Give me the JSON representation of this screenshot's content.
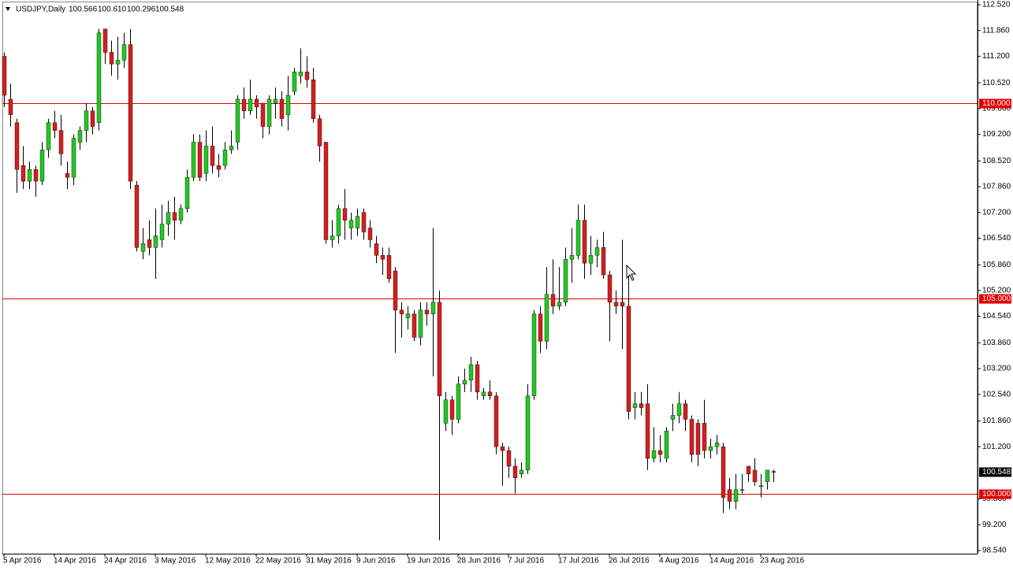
{
  "header": {
    "symbol": "USDJPY,Daily",
    "quote": [
      "100.566",
      "100.610",
      "100.296",
      "100.548"
    ]
  },
  "chart_data": {
    "type": "candlestick",
    "up_color": "#22c822",
    "down_color": "#d61e1e",
    "wick_color": "#000000",
    "categories": [
      "5 Apr 2016",
      null,
      null,
      null,
      null,
      null,
      null,
      null,
      "14 Apr 2016",
      null,
      null,
      null,
      null,
      null,
      null,
      null,
      "24 Apr 2016",
      null,
      null,
      null,
      null,
      null,
      null,
      null,
      "3 May 2016",
      null,
      null,
      null,
      null,
      null,
      null,
      null,
      "12 May 2016",
      null,
      null,
      null,
      null,
      null,
      null,
      null,
      "22 May 2016",
      null,
      null,
      null,
      null,
      null,
      null,
      null,
      "31 May 2016",
      null,
      null,
      null,
      null,
      null,
      null,
      null,
      "9 Jun 2016",
      null,
      null,
      null,
      null,
      null,
      null,
      null,
      "19 Jun 2016",
      null,
      null,
      null,
      null,
      null,
      null,
      null,
      "28 Jun 2016",
      null,
      null,
      null,
      null,
      null,
      null,
      null,
      "7 Jul 2016",
      null,
      null,
      null,
      null,
      null,
      null,
      null,
      "17 Jul 2016",
      null,
      null,
      null,
      null,
      null,
      null,
      null,
      "26 Jul 2016",
      null,
      null,
      null,
      null,
      null,
      null,
      null,
      "4 Aug 2016",
      null,
      null,
      null,
      null,
      null,
      null,
      null,
      "14 Aug 2016",
      null,
      null,
      null,
      null,
      null,
      null,
      null,
      "23 Aug 2016",
      null,
      null
    ],
    "open": [
      111.2,
      110.1,
      109.5,
      108.4,
      108.0,
      108.3,
      108.0,
      108.8,
      109.5,
      109.3,
      108.2,
      108.1,
      109.0,
      109.3,
      109.8,
      109.5,
      111.9,
      111.3,
      111.0,
      111.1,
      111.5,
      107.9,
      106.2,
      106.5,
      106.3,
      106.5,
      106.9,
      107.2,
      107.0,
      107.3,
      108.1,
      109.0,
      108.2,
      108.9,
      108.4,
      108.4,
      108.8,
      109.0,
      110.1,
      109.8,
      110.1,
      110.0,
      109.4,
      110.0,
      110.1,
      109.7,
      110.3,
      110.7,
      110.8,
      110.6,
      109.6,
      109.0,
      106.5,
      106.6,
      107.3,
      106.8,
      106.8,
      107.2,
      106.8,
      106.4,
      106.1,
      106.1,
      105.7,
      104.7,
      104.5,
      104.6,
      104.0,
      104.7,
      104.6,
      104.9,
      101.8,
      102.4,
      101.9,
      102.8,
      102.9,
      103.3,
      102.5,
      102.6,
      102.5,
      101.2,
      101.1,
      100.7,
      100.5,
      100.6,
      102.5,
      104.6,
      103.9,
      105.1,
      104.8,
      104.9,
      106.0,
      106.1,
      107.0,
      105.9,
      106.1,
      106.3,
      105.6,
      104.9,
      104.9,
      104.8,
      102.2,
      102.3,
      102.3,
      100.9,
      101.1,
      100.9,
      101.9,
      102.0,
      102.3,
      101.9,
      101.8,
      101.8,
      101.1,
      101.2,
      101.2,
      100.1,
      99.8,
      100.1,
      100.7,
      100.6,
      100.2,
      100.3,
      100.566
    ],
    "high": [
      111.3,
      110.5,
      109.6,
      108.9,
      108.5,
      108.4,
      109.0,
      109.6,
      109.8,
      109.7,
      108.5,
      109.2,
      109.4,
      110.0,
      109.9,
      111.9,
      111.9,
      111.6,
      111.7,
      111.8,
      111.9,
      108.0,
      106.8,
      107.0,
      107.3,
      107.4,
      107.5,
      107.6,
      107.4,
      108.3,
      109.2,
      109.2,
      109.3,
      109.4,
      108.7,
      109.0,
      109.3,
      110.2,
      110.4,
      110.6,
      110.2,
      110.0,
      110.2,
      110.4,
      110.3,
      110.7,
      110.9,
      111.4,
      111.2,
      110.9,
      109.7,
      109.0,
      107.0,
      107.4,
      107.8,
      107.2,
      107.3,
      107.3,
      107.0,
      106.6,
      106.3,
      106.3,
      105.8,
      104.9,
      104.8,
      104.7,
      104.9,
      104.9,
      106.8,
      105.2,
      102.6,
      102.5,
      103.0,
      103.2,
      103.5,
      103.4,
      102.7,
      102.9,
      102.6,
      101.3,
      101.2,
      100.9,
      100.8,
      102.8,
      104.7,
      104.8,
      105.8,
      106.0,
      105.8,
      106.3,
      106.8,
      107.4,
      107.4,
      106.6,
      106.5,
      106.7,
      105.7,
      105.2,
      106.5,
      105.6,
      102.6,
      102.6,
      102.8,
      101.7,
      101.5,
      101.7,
      102.3,
      102.6,
      102.4,
      102.0,
      101.9,
      102.4,
      101.4,
      101.5,
      101.3,
      100.4,
      100.5,
      100.5,
      100.7,
      100.9,
      100.5,
      100.6,
      100.61
    ],
    "low": [
      109.9,
      109.4,
      107.7,
      107.8,
      107.8,
      107.6,
      107.9,
      108.6,
      109.1,
      108.4,
      107.8,
      107.9,
      108.8,
      109.0,
      109.2,
      109.3,
      111.0,
      110.7,
      110.6,
      110.9,
      107.8,
      106.2,
      106.0,
      106.1,
      105.5,
      106.3,
      106.6,
      106.5,
      106.9,
      107.2,
      108.0,
      108.0,
      108.0,
      108.2,
      108.1,
      108.3,
      108.7,
      108.8,
      109.6,
      109.7,
      109.6,
      109.1,
      109.2,
      109.6,
      109.4,
      109.3,
      110.2,
      110.5,
      110.4,
      109.5,
      108.5,
      106.4,
      106.3,
      106.4,
      106.5,
      106.5,
      106.6,
      106.5,
      106.3,
      105.9,
      105.6,
      105.4,
      103.6,
      104.0,
      104.2,
      103.9,
      103.8,
      104.3,
      103.0,
      98.8,
      101.6,
      101.5,
      101.8,
      102.6,
      102.6,
      102.4,
      102.4,
      102.4,
      101.0,
      100.2,
      100.4,
      100.0,
      100.4,
      100.5,
      102.4,
      103.6,
      103.7,
      104.6,
      104.7,
      104.8,
      105.4,
      106.0,
      105.5,
      105.6,
      105.8,
      105.5,
      103.9,
      104.6,
      103.7,
      101.9,
      101.9,
      102.0,
      100.6,
      100.8,
      100.8,
      100.8,
      101.6,
      101.8,
      101.6,
      100.8,
      100.7,
      100.9,
      100.9,
      101.0,
      99.5,
      99.6,
      99.6,
      100.0,
      100.3,
      100.2,
      99.9,
      100.1,
      100.296
    ],
    "close": [
      110.2,
      109.7,
      108.3,
      108.0,
      108.3,
      108.0,
      108.8,
      109.5,
      109.3,
      108.7,
      108.1,
      109.1,
      109.3,
      109.8,
      109.4,
      111.8,
      111.3,
      111.0,
      111.1,
      111.5,
      108.0,
      106.3,
      106.4,
      106.3,
      106.6,
      106.9,
      107.2,
      107.0,
      107.3,
      108.1,
      109.0,
      108.1,
      108.9,
      108.4,
      108.3,
      108.8,
      108.9,
      110.1,
      109.8,
      110.1,
      109.9,
      109.4,
      110.1,
      110.1,
      109.6,
      110.2,
      110.8,
      110.8,
      110.6,
      109.6,
      108.9,
      106.5,
      106.6,
      107.3,
      107.0,
      107.0,
      107.1,
      106.7,
      106.5,
      106.1,
      106.0,
      105.5,
      104.7,
      104.6,
      104.6,
      104.0,
      104.7,
      104.6,
      104.9,
      102.5,
      102.4,
      101.9,
      102.8,
      102.9,
      103.3,
      102.6,
      102.6,
      102.5,
      101.2,
      101.1,
      100.7,
      100.4,
      100.6,
      102.5,
      104.6,
      103.9,
      105.1,
      104.8,
      104.9,
      106.0,
      106.1,
      107.0,
      105.9,
      106.1,
      106.3,
      105.6,
      104.9,
      104.8,
      104.8,
      102.1,
      102.3,
      102.2,
      100.9,
      101.1,
      101.0,
      101.6,
      102.0,
      102.3,
      101.9,
      101.0,
      101.0,
      101.1,
      101.2,
      101.3,
      99.9,
      99.8,
      100.1,
      100.1,
      100.5,
      100.3,
      100.2,
      100.6,
      100.548
    ],
    "price_label": "100.548",
    "levels": [
      {
        "value": 110,
        "label": "110.000"
      },
      {
        "value": 105,
        "label": "105.000"
      },
      {
        "value": 100,
        "label": "100.000"
      }
    ],
    "level_color": "#e00000",
    "ylim": [
      98.54,
      112.52
    ],
    "yticks": [
      {
        "value": 112.52,
        "label": "112.520"
      },
      {
        "value": 111.86,
        "label": "111.860"
      },
      {
        "value": 111.2,
        "label": "111.200"
      },
      {
        "value": 110.52,
        "label": "110.520"
      },
      {
        "value": 109.86,
        "label": "109.860"
      },
      {
        "value": 109.2,
        "label": "109.200"
      },
      {
        "value": 108.52,
        "label": "108.520"
      },
      {
        "value": 107.86,
        "label": "107.860"
      },
      {
        "value": 107.2,
        "label": "107.200"
      },
      {
        "value": 106.54,
        "label": "106.540"
      },
      {
        "value": 105.86,
        "label": "105.860"
      },
      {
        "value": 105.2,
        "label": "105.200"
      },
      {
        "value": 104.54,
        "label": "104.540"
      },
      {
        "value": 103.86,
        "label": "103.860"
      },
      {
        "value": 103.2,
        "label": "103.200"
      },
      {
        "value": 102.54,
        "label": "102.540"
      },
      {
        "value": 101.86,
        "label": "101.860"
      },
      {
        "value": 101.2,
        "label": "101.200"
      },
      {
        "value": 99.86,
        "label": "99.860"
      },
      {
        "value": 99.2,
        "label": "99.200"
      },
      {
        "value": 98.54,
        "label": "98.540"
      }
    ]
  }
}
